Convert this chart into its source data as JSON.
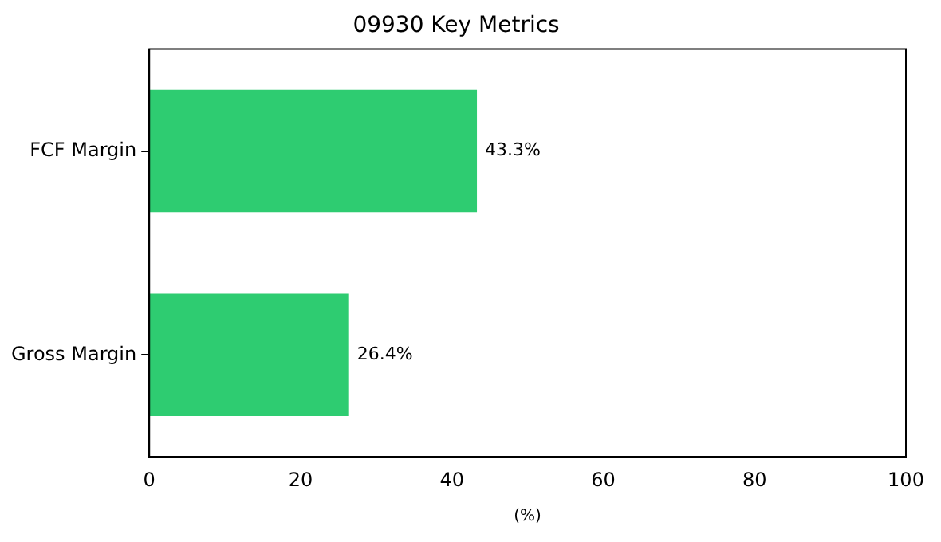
{
  "chart_data": {
    "type": "bar",
    "orientation": "horizontal",
    "title": "09930 Key Metrics",
    "xlabel": "(%)",
    "categories": [
      "FCF Margin",
      "Gross Margin"
    ],
    "values": [
      43.3,
      26.4
    ],
    "value_labels": [
      "43.3%",
      "26.4%"
    ],
    "color": "#2ecc71",
    "xlim": [
      0,
      100
    ],
    "xticks": [
      0,
      20,
      40,
      60,
      80,
      100
    ],
    "grid": false,
    "legend": false
  }
}
